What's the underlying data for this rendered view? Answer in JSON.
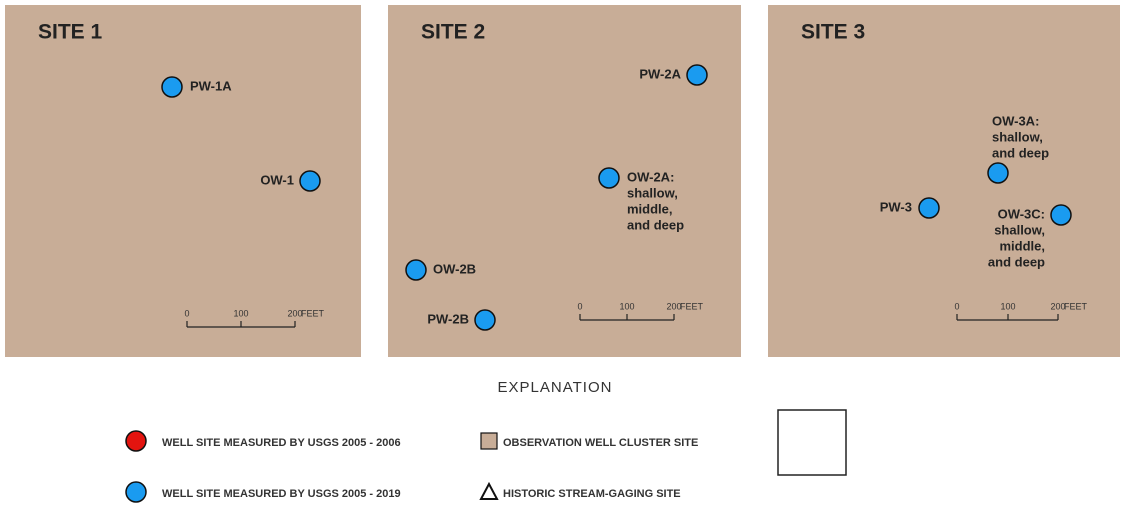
{
  "panels": [
    {
      "title": "SITE 1",
      "wells": [
        {
          "label": [
            "PW-1A"
          ]
        },
        {
          "label": [
            "OW-1"
          ]
        }
      ],
      "scale": {
        "ticks": [
          "0",
          "100",
          "200"
        ],
        "unit": "FEET"
      }
    },
    {
      "title": "SITE 2",
      "wells": [
        {
          "label": [
            "PW-2A"
          ]
        },
        {
          "label": [
            "OW-2A:",
            "shallow,",
            "middle,",
            "and deep"
          ]
        },
        {
          "label": [
            "OW-2B"
          ]
        },
        {
          "label": [
            "PW-2B"
          ]
        }
      ],
      "scale": {
        "ticks": [
          "0",
          "100",
          "200"
        ],
        "unit": "FEET"
      }
    },
    {
      "title": "SITE 3",
      "wells": [
        {
          "label": [
            "OW-3A:",
            "shallow,",
            "and deep"
          ]
        },
        {
          "label": [
            "PW-3"
          ]
        },
        {
          "label": [
            "OW-3C:",
            "shallow,",
            "middle,",
            "and deep"
          ]
        }
      ],
      "scale": {
        "ticks": [
          "0",
          "100",
          "200"
        ],
        "unit": "FEET"
      }
    }
  ],
  "explanation": {
    "title": "EXPLANATION",
    "items": [
      {
        "label": "WELL SITE MEASURED BY USGS 2005 - 2006"
      },
      {
        "label": "WELL SITE MEASURED BY USGS 2005 - 2019"
      },
      {
        "label": "OBSERVATION WELL CLUSTER SITE"
      },
      {
        "label": "HISTORIC STREAM-GAGING SITE"
      }
    ]
  }
}
